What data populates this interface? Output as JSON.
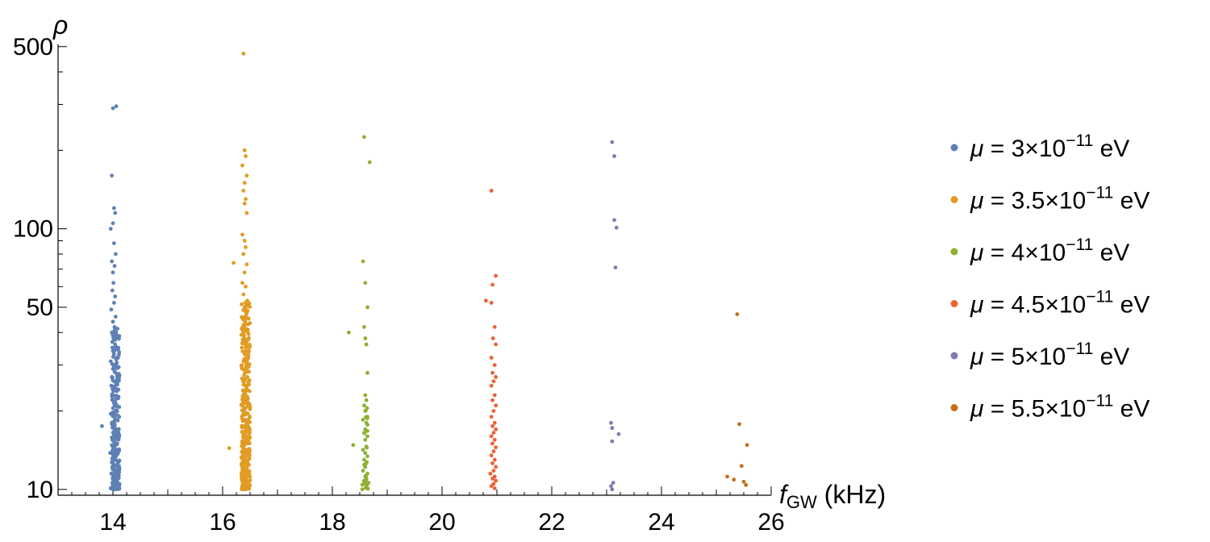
{
  "chart_data": {
    "type": "scatter",
    "ylabel": "ρ",
    "xlabel_main": "f",
    "xlabel_sub": "GW",
    "xlabel_unit": " (kHz)",
    "xlim": [
      13,
      26
    ],
    "ylim": [
      9.5,
      510
    ],
    "yscale": "log",
    "xticks": [
      14,
      16,
      18,
      20,
      22,
      24,
      26
    ],
    "yticks": [
      10,
      50,
      100,
      500
    ],
    "grid": false,
    "legend_position": "right",
    "series": [
      {
        "label": {
          "mu": "μ",
          "eq": " = 3×10",
          "exp": "−11",
          "unit": " eV"
        },
        "color": "#5e81b5",
        "x_center": 14.05,
        "x_spread": 0.07,
        "points": [
          [
            14.0,
            290
          ],
          [
            14.06,
            295
          ],
          [
            13.98,
            160
          ],
          [
            14.02,
            120
          ],
          [
            14.04,
            115
          ],
          [
            14.0,
            105
          ],
          [
            13.96,
            100
          ],
          [
            14.02,
            88
          ],
          [
            14.05,
            80
          ],
          [
            13.98,
            75
          ],
          [
            14.03,
            72
          ],
          [
            14.0,
            68
          ],
          [
            14.01,
            62
          ],
          [
            13.99,
            58
          ],
          [
            14.04,
            55
          ],
          [
            14.02,
            52
          ],
          [
            13.97,
            49
          ],
          [
            14.05,
            46
          ],
          [
            14.0,
            44
          ],
          [
            14.03,
            42
          ],
          [
            13.98,
            40
          ],
          [
            14.06,
            39
          ],
          [
            14.01,
            38
          ],
          [
            14.04,
            36
          ],
          [
            13.99,
            35
          ],
          [
            14.02,
            33
          ],
          [
            14.07,
            32
          ],
          [
            13.96,
            31
          ],
          [
            14.03,
            30
          ],
          [
            14.0,
            29
          ],
          [
            14.05,
            28
          ],
          [
            13.98,
            27
          ],
          [
            14.02,
            26
          ],
          [
            14.08,
            25.5
          ],
          [
            13.97,
            25
          ],
          [
            14.04,
            24
          ],
          [
            14.01,
            23
          ],
          [
            14.06,
            22.5
          ],
          [
            13.99,
            22
          ],
          [
            14.03,
            21
          ],
          [
            14.0,
            20.5
          ],
          [
            14.05,
            20
          ],
          [
            13.96,
            19.5
          ],
          [
            14.02,
            19
          ],
          [
            14.07,
            18.5
          ],
          [
            13.98,
            18
          ],
          [
            13.8,
            17.5
          ],
          [
            14.04,
            17
          ],
          [
            14.01,
            16.5
          ],
          [
            14.06,
            16
          ],
          [
            13.99,
            15.5
          ],
          [
            14.03,
            15
          ],
          [
            14.0,
            14.6
          ],
          [
            14.08,
            14.2
          ],
          [
            13.95,
            13.8
          ],
          [
            14.02,
            13.4
          ],
          [
            14.05,
            13
          ],
          [
            13.98,
            12.7
          ],
          [
            14.04,
            12.4
          ],
          [
            14.01,
            12.1
          ],
          [
            14.07,
            11.8
          ],
          [
            13.97,
            11.5
          ],
          [
            14.03,
            11.2
          ],
          [
            14.0,
            11
          ],
          [
            14.06,
            10.8
          ],
          [
            13.99,
            10.6
          ],
          [
            14.12,
            10.5
          ],
          [
            14.02,
            10.3
          ],
          [
            14.05,
            10.2
          ],
          [
            13.96,
            10.1
          ],
          [
            14.1,
            10.05
          ]
        ]
      },
      {
        "label": {
          "mu": "μ",
          "eq": " = 3.5×10",
          "exp": "−11",
          "unit": " eV"
        },
        "color": "#e19c24",
        "x_center": 16.42,
        "x_spread": 0.08,
        "points": [
          [
            16.38,
            470
          ],
          [
            16.4,
            200
          ],
          [
            16.42,
            190
          ],
          [
            16.36,
            175
          ],
          [
            16.44,
            160
          ],
          [
            16.4,
            150
          ],
          [
            16.38,
            140
          ],
          [
            16.42,
            130
          ],
          [
            16.4,
            125
          ],
          [
            16.44,
            115
          ],
          [
            16.36,
            95
          ],
          [
            16.4,
            90
          ],
          [
            16.42,
            85
          ],
          [
            16.38,
            80
          ],
          [
            16.2,
            74
          ],
          [
            16.44,
            73
          ],
          [
            16.4,
            68
          ],
          [
            16.36,
            62
          ],
          [
            16.42,
            60
          ],
          [
            16.38,
            56
          ],
          [
            16.45,
            53
          ],
          [
            16.4,
            50
          ],
          [
            16.43,
            47
          ],
          [
            16.37,
            45
          ],
          [
            16.41,
            43
          ],
          [
            16.46,
            41
          ],
          [
            16.39,
            39
          ],
          [
            16.44,
            37
          ],
          [
            16.35,
            35
          ],
          [
            16.42,
            34
          ],
          [
            16.4,
            33
          ],
          [
            16.47,
            32
          ],
          [
            16.38,
            31
          ],
          [
            16.43,
            30
          ],
          [
            16.36,
            29
          ],
          [
            16.41,
            28
          ],
          [
            16.45,
            27
          ],
          [
            16.39,
            26
          ],
          [
            16.44,
            25
          ],
          [
            16.37,
            24
          ],
          [
            16.42,
            23
          ],
          [
            16.4,
            22
          ],
          [
            16.46,
            21
          ],
          [
            16.38,
            20
          ],
          [
            16.43,
            19.5
          ],
          [
            16.35,
            19
          ],
          [
            16.41,
            18.5
          ],
          [
            16.44,
            18
          ],
          [
            16.39,
            17.5
          ],
          [
            16.42,
            17
          ],
          [
            16.37,
            16.5
          ],
          [
            16.45,
            16
          ],
          [
            16.4,
            15.5
          ],
          [
            16.43,
            15
          ],
          [
            16.36,
            14.6
          ],
          [
            16.12,
            14.4
          ],
          [
            16.41,
            14.2
          ],
          [
            16.46,
            13.8
          ],
          [
            16.38,
            13.4
          ],
          [
            16.44,
            13
          ],
          [
            16.4,
            12.6
          ],
          [
            16.35,
            12.3
          ],
          [
            16.42,
            12
          ],
          [
            16.47,
            11.7
          ],
          [
            16.39,
            11.4
          ],
          [
            16.43,
            11.1
          ],
          [
            16.37,
            10.9
          ],
          [
            16.41,
            10.7
          ],
          [
            16.45,
            10.5
          ],
          [
            16.38,
            10.3
          ],
          [
            16.44,
            10.2
          ],
          [
            16.4,
            10.1
          ],
          [
            16.48,
            10.05
          ],
          [
            16.36,
            10.0
          ]
        ]
      },
      {
        "label": {
          "mu": "μ",
          "eq": " = 4×10",
          "exp": "−11",
          "unit": " eV"
        },
        "color": "#8fb032",
        "x_center": 18.6,
        "x_spread": 0.06,
        "points": [
          [
            18.58,
            225
          ],
          [
            18.68,
            180
          ],
          [
            18.56,
            75
          ],
          [
            18.6,
            62
          ],
          [
            18.64,
            50
          ],
          [
            18.3,
            40
          ],
          [
            18.58,
            42
          ],
          [
            18.6,
            38
          ],
          [
            18.62,
            36
          ],
          [
            18.64,
            28
          ],
          [
            18.6,
            23
          ],
          [
            18.62,
            22
          ],
          [
            18.58,
            21
          ],
          [
            18.6,
            20
          ],
          [
            18.64,
            19
          ],
          [
            18.56,
            18.5
          ],
          [
            18.62,
            18
          ],
          [
            18.6,
            17
          ],
          [
            18.58,
            16.5
          ],
          [
            18.64,
            16
          ],
          [
            18.6,
            15.5
          ],
          [
            18.38,
            14.8
          ],
          [
            18.62,
            14.6
          ],
          [
            18.56,
            14.2
          ],
          [
            18.6,
            13.8
          ],
          [
            18.64,
            13.4
          ],
          [
            18.58,
            13
          ],
          [
            18.62,
            12.6
          ],
          [
            18.6,
            12.2
          ],
          [
            18.56,
            11.8
          ],
          [
            18.64,
            11.5
          ],
          [
            18.6,
            11.2
          ],
          [
            18.62,
            11
          ],
          [
            18.58,
            10.8
          ],
          [
            18.66,
            10.6
          ],
          [
            18.6,
            10.5
          ],
          [
            18.63,
            10.4
          ]
        ]
      },
      {
        "label": {
          "mu": "μ",
          "eq": " = 4.5×10",
          "exp": "−11",
          "unit": " eV"
        },
        "color": "#eb6235",
        "x_center": 20.95,
        "x_spread": 0.06,
        "points": [
          [
            20.9,
            140
          ],
          [
            20.98,
            66
          ],
          [
            20.92,
            61
          ],
          [
            20.8,
            53
          ],
          [
            20.9,
            52
          ],
          [
            20.96,
            42
          ],
          [
            20.93,
            38
          ],
          [
            20.98,
            36
          ],
          [
            20.9,
            32
          ],
          [
            20.96,
            30
          ],
          [
            20.92,
            28
          ],
          [
            20.98,
            27
          ],
          [
            20.94,
            26
          ],
          [
            20.9,
            25
          ],
          [
            20.96,
            23
          ],
          [
            20.92,
            22
          ],
          [
            20.98,
            21
          ],
          [
            20.94,
            20
          ],
          [
            20.9,
            19
          ],
          [
            20.96,
            18
          ],
          [
            20.92,
            17.5
          ],
          [
            20.98,
            17
          ],
          [
            20.94,
            16.5
          ],
          [
            20.9,
            16
          ],
          [
            20.96,
            15.5
          ],
          [
            20.92,
            15
          ],
          [
            20.98,
            14.5
          ],
          [
            20.94,
            14
          ],
          [
            20.9,
            13.5
          ],
          [
            20.96,
            13
          ],
          [
            20.92,
            12.6
          ],
          [
            20.98,
            12.2
          ],
          [
            20.94,
            11.8
          ],
          [
            20.88,
            11.5
          ],
          [
            20.96,
            11.2
          ],
          [
            20.92,
            11
          ],
          [
            20.98,
            10.8
          ],
          [
            20.94,
            10.5
          ],
          [
            20.9,
            10.3
          ],
          [
            20.96,
            10.1
          ]
        ]
      },
      {
        "label": {
          "mu": "μ",
          "eq": " = 5×10",
          "exp": "−11",
          "unit": " eV"
        },
        "color": "#8778b3",
        "x_center": 23.15,
        "x_spread": 0.08,
        "points": [
          [
            23.1,
            215
          ],
          [
            23.14,
            190
          ],
          [
            23.14,
            108
          ],
          [
            23.18,
            101
          ],
          [
            23.16,
            71
          ],
          [
            23.08,
            18
          ],
          [
            23.1,
            17.2
          ],
          [
            23.22,
            16.3
          ],
          [
            23.1,
            15.3
          ],
          [
            23.12,
            10.6
          ],
          [
            23.08,
            10.3
          ],
          [
            23.1,
            10.0
          ]
        ]
      },
      {
        "label": {
          "mu": "μ",
          "eq": " = 5.5×10",
          "exp": "−11",
          "unit": " eV"
        },
        "color": "#c56e1a",
        "x_center": 25.4,
        "x_spread": 0.1,
        "points": [
          [
            25.38,
            47
          ],
          [
            25.42,
            17.8
          ],
          [
            25.56,
            14.8
          ],
          [
            25.46,
            12.3
          ],
          [
            25.2,
            11.2
          ],
          [
            25.32,
            10.9
          ],
          [
            25.5,
            10.7
          ],
          [
            25.54,
            10.4
          ]
        ]
      }
    ]
  }
}
